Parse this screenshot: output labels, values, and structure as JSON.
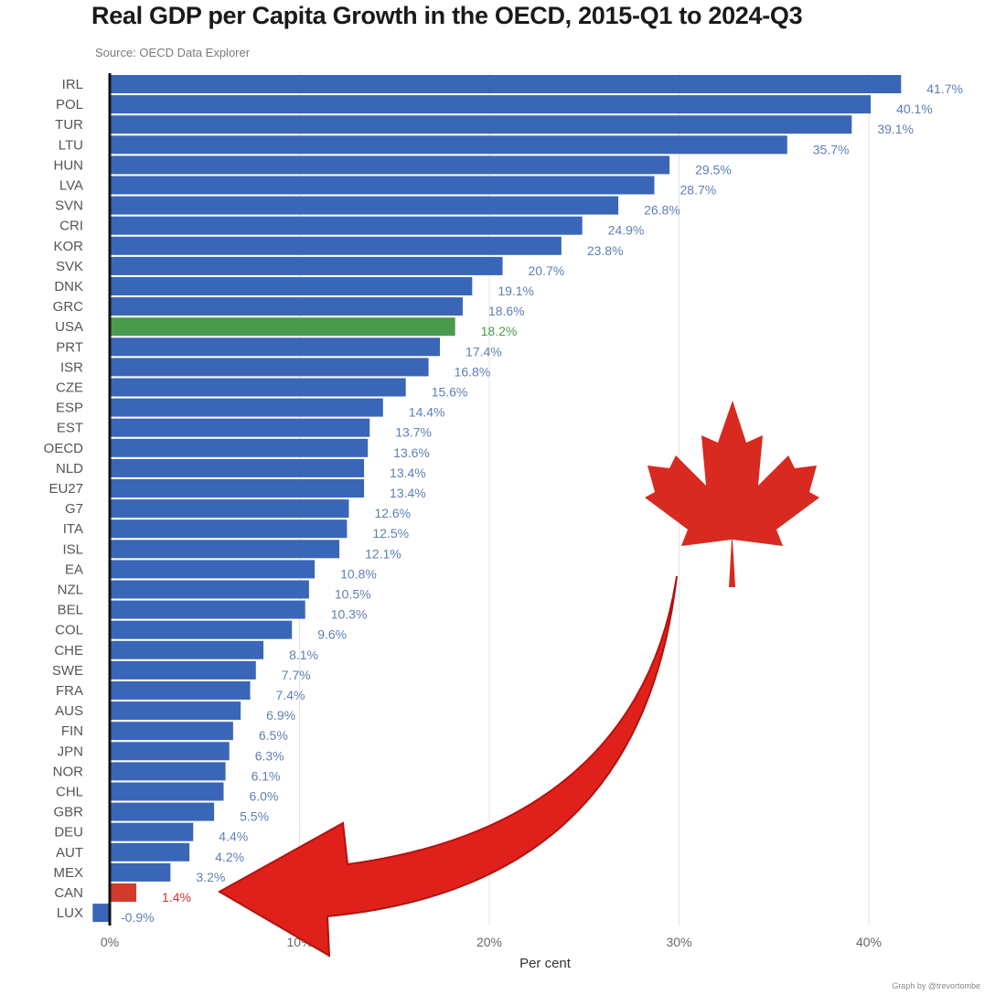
{
  "chart_data": {
    "type": "bar",
    "orientation": "horizontal",
    "title": "Real GDP per Capita Growth in the OECD, 2015-Q1 to 2024-Q3",
    "subtitle": "Source: OECD Data Explorer",
    "xlabel": "Per cent",
    "ylabel": "",
    "xlim": [
      -1.5,
      43
    ],
    "xticks": [
      0,
      10,
      20,
      30,
      40
    ],
    "xtick_labels": [
      "0%",
      "10%",
      "20%",
      "30%",
      "40%"
    ],
    "grid": "vertical",
    "legend": "none",
    "credit": "Graph by @trevortombe",
    "categories": [
      "IRL",
      "POL",
      "TUR",
      "LTU",
      "HUN",
      "LVA",
      "SVN",
      "CRI",
      "KOR",
      "SVK",
      "DNK",
      "GRC",
      "USA",
      "PRT",
      "ISR",
      "CZE",
      "ESP",
      "EST",
      "OECD",
      "NLD",
      "EU27",
      "G7",
      "ITA",
      "ISL",
      "EA",
      "NZL",
      "BEL",
      "COL",
      "CHE",
      "SWE",
      "FRA",
      "AUS",
      "FIN",
      "JPN",
      "NOR",
      "CHL",
      "GBR",
      "DEU",
      "AUT",
      "MEX",
      "CAN",
      "LUX"
    ],
    "values": [
      41.7,
      40.1,
      39.1,
      35.7,
      29.5,
      28.7,
      26.8,
      24.9,
      23.8,
      20.7,
      19.1,
      18.6,
      18.2,
      17.4,
      16.8,
      15.6,
      14.4,
      13.7,
      13.6,
      13.4,
      13.4,
      12.6,
      12.5,
      12.1,
      10.8,
      10.5,
      10.3,
      9.6,
      8.1,
      7.7,
      7.4,
      6.9,
      6.5,
      6.3,
      6.1,
      6.0,
      5.5,
      4.4,
      4.2,
      3.2,
      1.4,
      -0.9
    ],
    "value_labels": [
      "41.7%",
      "40.1%",
      "39.1%",
      "35.7%",
      "29.5%",
      "28.7%",
      "26.8%",
      "24.9%",
      "23.8%",
      "20.7%",
      "19.1%",
      "18.6%",
      "18.2%",
      "17.4%",
      "16.8%",
      "15.6%",
      "14.4%",
      "13.7%",
      "13.6%",
      "13.4%",
      "13.4%",
      "12.6%",
      "12.5%",
      "12.1%",
      "10.8%",
      "10.5%",
      "10.3%",
      "9.6%",
      "8.1%",
      "7.7%",
      "7.4%",
      "6.9%",
      "6.5%",
      "6.3%",
      "6.1%",
      "6.0%",
      "5.5%",
      "4.4%",
      "4.2%",
      "3.2%",
      "1.4%",
      "-0.9%"
    ],
    "colors": {
      "default": "#3a66b8",
      "highlight_green": "#4a9a4e",
      "highlight_red": "#d23a2c",
      "label_default": "#5f7fb5",
      "label_green": "#4a9a4e",
      "label_red": "#c8372d",
      "axis": "#111111",
      "grid": "#e3e3e3",
      "maple_leaf": "#d82a20",
      "arrow": "#e0211b"
    },
    "highlights": {
      "USA": "green",
      "CAN": "red"
    },
    "annotations": {
      "maple_leaf_icon": "maple-leaf-icon",
      "arrow_icon": "curved-arrow-icon"
    }
  }
}
